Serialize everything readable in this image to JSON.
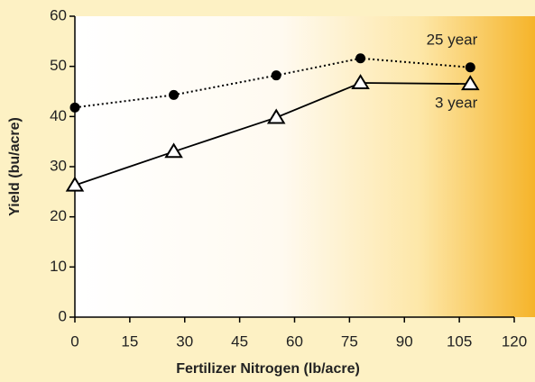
{
  "chart_data": {
    "type": "line",
    "x_label": "Fertilizer Nitrogen (lb/acre)",
    "y_label": "Yield (bu/acre)",
    "x": [
      0,
      27,
      55,
      78,
      108
    ],
    "series": [
      {
        "name": "25 year",
        "color": "#000000",
        "dash": "dotted",
        "marker": "circle",
        "values": [
          41.8,
          44.3,
          48.2,
          51.6,
          49.8
        ]
      },
      {
        "name": "3 year",
        "color": "#000000",
        "dash": "solid",
        "marker": "triangle",
        "values": [
          26.3,
          33,
          39.8,
          46.7,
          46.5
        ]
      }
    ],
    "xlim": [
      0,
      120
    ],
    "xticks": [
      0,
      15,
      30,
      45,
      60,
      75,
      90,
      105,
      120
    ],
    "ylim": [
      0,
      60
    ],
    "yticks": [
      0,
      10,
      20,
      30,
      40,
      50,
      60
    ]
  }
}
